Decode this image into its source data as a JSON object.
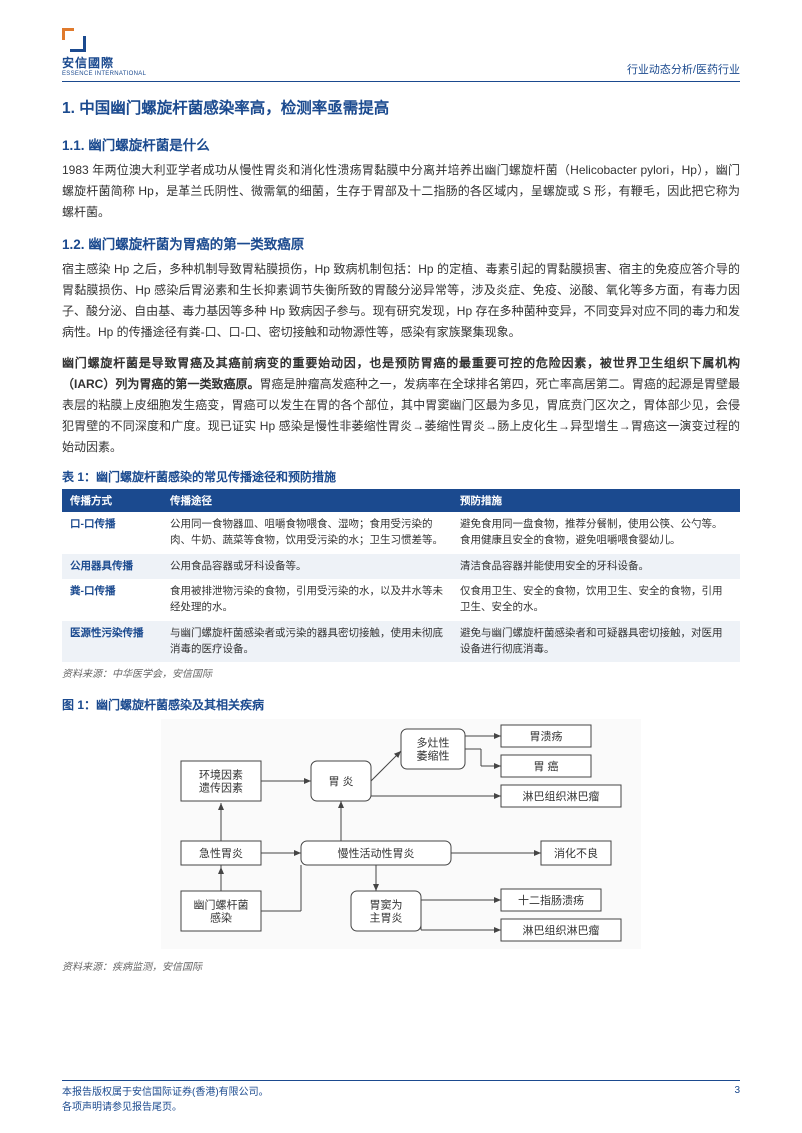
{
  "header": {
    "logo_cn": "安信國際",
    "logo_en": "ESSENCE INTERNATIONAL",
    "right": "行业动态分析/医药行业"
  },
  "section1": {
    "title": "1. 中国幽门螺旋杆菌感染率高，检测率亟需提高",
    "sub1_title": "1.1. 幽门螺旋杆菌是什么",
    "sub1_body": "1983 年两位澳大利亚学者成功从慢性胃炎和消化性溃疡胃黏膜中分离并培养出幽门螺旋杆菌（Helicobacter pylori，Hp），幽门螺旋杆菌简称 Hp，是革兰氏阴性、微需氧的细菌，生存于胃部及十二指肠的各区域内，呈螺旋或 S 形，有鞭毛，因此把它称为螺杆菌。",
    "sub2_title": "1.2. 幽门螺旋杆菌为胃癌的第一类致癌原",
    "sub2_body1": "宿主感染 Hp 之后，多种机制导致胃粘膜损伤，Hp 致病机制包括：Hp 的定植、毒素引起的胃黏膜损害、宿主的免疫应答介导的胃黏膜损伤、Hp 感染后胃泌素和生长抑素调节失衡所致的胃酸分泌异常等，涉及炎症、免疫、泌酸、氧化等多方面，有毒力因子、酸分泌、自由基、毒力基因等多种 Hp 致病因子参与。现有研究发现，Hp 存在多种菌种变异，不同变异对应不同的毒力和发病性。Hp 的传播途径有粪-口、口-口、密切接触和动物源性等，感染有家族聚集现象。",
    "sub2_body2_bold": "幽门螺旋杆菌是导致胃癌及其癌前病变的重要始动因，也是预防胃癌的最重要可控的危险因素，被世界卫生组织下属机构（IARC）列为胃癌的第一类致癌原。",
    "sub2_body2_rest": "胃癌是肿瘤高发癌种之一，发病率在全球排名第四，死亡率高居第二。胃癌的起源是胃壁最表层的粘膜上皮细胞发生癌变，胃癌可以发生在胃的各个部位，其中胃窦幽门区最为多见，胃底贲门区次之，胃体部少见，会侵犯胃壁的不同深度和广度。现已证实 Hp 感染是慢性非萎缩性胃炎→萎缩性胃炎→肠上皮化生→异型增生→胃癌这一演变过程的始动因素。"
  },
  "table1": {
    "title": "表 1：幽门螺旋杆菌感染的常见传播途径和预防措施",
    "columns": [
      "传播方式",
      "传播途径",
      "预防措施"
    ],
    "col_widths": [
      "100px",
      "290px",
      "auto"
    ],
    "rows": [
      [
        "口-口传播",
        "公用同一食物器皿、咀嚼食物喂食、湿吻；食用受污染的肉、牛奶、蔬菜等食物，饮用受污染的水；卫生习惯差等。",
        "避免食用同一盘食物，推荐分餐制，使用公筷、公勺等。食用健康且安全的食物，避免咀嚼喂食婴幼儿。"
      ],
      [
        "公用器具传播",
        "公用食品容器或牙科设备等。",
        "清洁食品容器并能使用安全的牙科设备。"
      ],
      [
        "粪-口传播",
        "食用被排泄物污染的食物，引用受污染的水，以及井水等未经处理的水。",
        "仅食用卫生、安全的食物，饮用卫生、安全的食物，引用卫生、安全的水。"
      ],
      [
        "医源性污染传播",
        "与幽门螺旋杆菌感染者或污染的器具密切接触，使用未彻底消毒的医疗设备。",
        "避免与幽门螺旋杆菌感染者和可疑器具密切接触，对医用设备进行彻底消毒。"
      ]
    ],
    "source": "资料来源：中华医学会，安信国际"
  },
  "figure1": {
    "title": "图 1：幽门螺旋杆菌感染及其相关疾病",
    "nodes": {
      "env": "环境因素\n遗传因素",
      "acute": "急性胃炎",
      "hp_infect": "幽门螺杆菌\n感染",
      "gastritis": "胃 炎",
      "multifocal": "多灶性\n萎缩性",
      "chronic": "慢性活动性胃炎",
      "antrum": "胃窦为\n主胃炎",
      "ulcer": "胃溃疡",
      "cancer": "胃 癌",
      "lymphoma": "淋巴组织淋巴瘤",
      "dyspepsia": "消化不良",
      "duodenal": "十二指肠溃疡",
      "lymphoma2": "淋巴组织淋巴瘤"
    },
    "style": {
      "bg": "#fafafa",
      "node_border": "#444",
      "node_bg": "#fff",
      "font_size": 11,
      "arrow_color": "#444"
    },
    "source": "资料来源：疾病监测，安信国际"
  },
  "footer": {
    "line1": "本报告版权属于安信国际证券(香港)有限公司。",
    "line2": "各项声明请参见报告尾页。",
    "page": "3"
  }
}
